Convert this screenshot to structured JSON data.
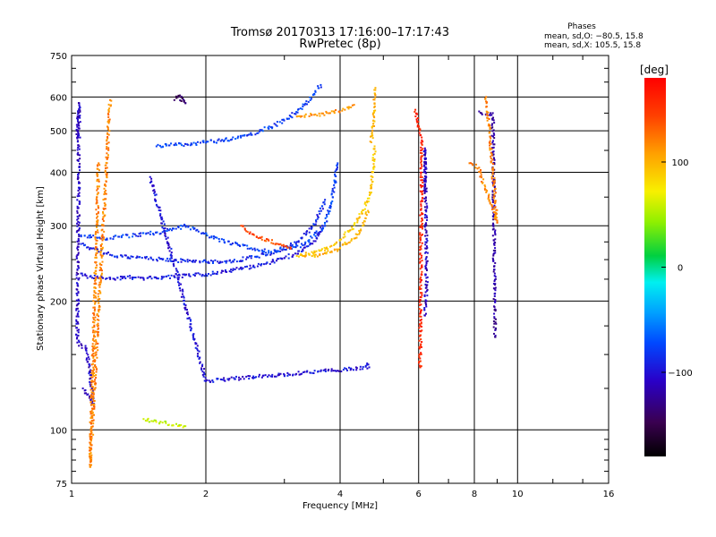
{
  "chart_data": {
    "type": "scatter",
    "title": "Tromsø 20170313 17:16:00–17:17:43",
    "subtitle": "RwPretec (8p)",
    "xlabel": "Frequency [MHz]",
    "ylabel": "Stationary phase Virtual Height [km]",
    "x_scale": "log",
    "y_scale": "log",
    "xlim": [
      1,
      16
    ],
    "ylim": [
      75,
      750
    ],
    "x_ticks": [
      "1",
      "2",
      "4",
      "6",
      "8",
      "10",
      "16"
    ],
    "y_ticks": [
      "75",
      "100",
      "200",
      "300",
      "400",
      "500",
      "600",
      "750"
    ],
    "grid": true,
    "phase_box": {
      "title": "Phases",
      "line_o": "mean, sd,O: −80.5, 15.8",
      "line_x": "mean, sd,X: 105.5, 15.8"
    },
    "colorbar": {
      "label": "[deg]",
      "range": [
        -180,
        180
      ],
      "ticks": [
        "100",
        "0",
        "−100"
      ],
      "tick_values": [
        100,
        0,
        -100
      ]
    },
    "series": [
      {
        "x": [
          1.3,
          1.45,
          1.7,
          2.0,
          2.3,
          2.7,
          3.0,
          3.3,
          3.55,
          3.65
        ],
        "y": [
          228,
          226,
          228,
          231,
          236,
          244,
          252,
          262,
          280,
          300
        ],
        "phase": -95
      },
      {
        "x": [
          1.05,
          1.1,
          1.2,
          1.3
        ],
        "y": [
          232,
          228,
          226,
          226
        ],
        "phase": -100
      },
      {
        "x": [
          1.05,
          1.1,
          1.2,
          1.3,
          1.6,
          1.8,
          2.0,
          2.3,
          2.6,
          2.9,
          3.2,
          3.45,
          3.6,
          3.7
        ],
        "y": [
          272,
          266,
          258,
          254,
          250,
          248,
          247,
          248,
          254,
          262,
          275,
          295,
          320,
          345
        ],
        "phase": -88
      },
      {
        "x": [
          1.05,
          1.2,
          1.6,
          1.8,
          2.2,
          2.8,
          3.3,
          3.7,
          3.85,
          3.95
        ],
        "y": [
          285,
          280,
          290,
          300,
          275,
          260,
          270,
          300,
          350,
          420
        ],
        "phase": -78
      },
      {
        "x": [
          1.55,
          1.7,
          1.9,
          2.2,
          2.5,
          2.8,
          3.1,
          3.3,
          3.5,
          3.62
        ],
        "y": [
          460,
          463,
          467,
          475,
          490,
          510,
          540,
          570,
          610,
          640
        ],
        "phase": -78
      },
      {
        "x": [
          3.2,
          3.4,
          3.6,
          3.8,
          4.0,
          4.2,
          4.4,
          4.6,
          4.7,
          4.75,
          4.78
        ],
        "y": [
          255,
          258,
          262,
          268,
          278,
          292,
          312,
          340,
          370,
          410,
          460
        ],
        "phase": 90
      },
      {
        "x": [
          3.3,
          3.6,
          3.8,
          4.0,
          4.3,
          4.5,
          4.62
        ],
        "y": [
          255,
          256,
          260,
          266,
          280,
          300,
          325
        ],
        "phase": 100
      },
      {
        "x": [
          4.7,
          4.75,
          4.78,
          4.8
        ],
        "y": [
          470,
          520,
          580,
          630
        ],
        "phase": 100
      },
      {
        "x": [
          2.4,
          2.6,
          2.9,
          3.1
        ],
        "y": [
          300,
          283,
          272,
          265
        ],
        "phase": 140
      },
      {
        "x": [
          3.2,
          3.5,
          3.8,
          4.1,
          4.3
        ],
        "y": [
          540,
          545,
          550,
          560,
          575
        ],
        "phase": 115
      },
      {
        "x": [
          1.45,
          1.6,
          1.8
        ],
        "y": [
          106,
          104,
          102
        ],
        "phase": 60
      },
      {
        "x": [
          1.03,
          1.04,
          1.03,
          1.08,
          1.12,
          1.06
        ],
        "y": [
          480,
          580,
          160,
          155,
          115,
          125
        ],
        "phase": -110
      },
      {
        "x": [
          1.15,
          1.1,
          1.22
        ],
        "y": [
          420,
          82,
          590
        ],
        "phase": 120
      },
      {
        "x": [
          1.7,
          1.75,
          1.8,
          1.72
        ],
        "y": [
          590,
          605,
          580,
          600
        ],
        "phase": -140
      },
      {
        "x": [
          6.2,
          6.2,
          6.2,
          6.25,
          6.25,
          6.2
        ],
        "y": [
          360,
          430,
          455,
          245,
          215,
          185
        ],
        "phase": -110
      },
      {
        "x": [
          5.9,
          6.1,
          6.05
        ],
        "y": [
          560,
          465,
          140
        ],
        "phase": 160
      },
      {
        "x": [
          8.2,
          8.5,
          8.8,
          8.9
        ],
        "y": [
          555,
          545,
          550,
          165
        ],
        "phase": -120
      },
      {
        "x": [
          7.8,
          8.2,
          8.3,
          9.0,
          8.5
        ],
        "y": [
          420,
          410,
          390,
          305,
          600
        ],
        "phase": 120
      },
      {
        "x": [
          4.6,
          4.65,
          2.0,
          1.5
        ],
        "y": [
          143,
          140,
          130,
          390
        ],
        "phase": -100
      }
    ]
  }
}
